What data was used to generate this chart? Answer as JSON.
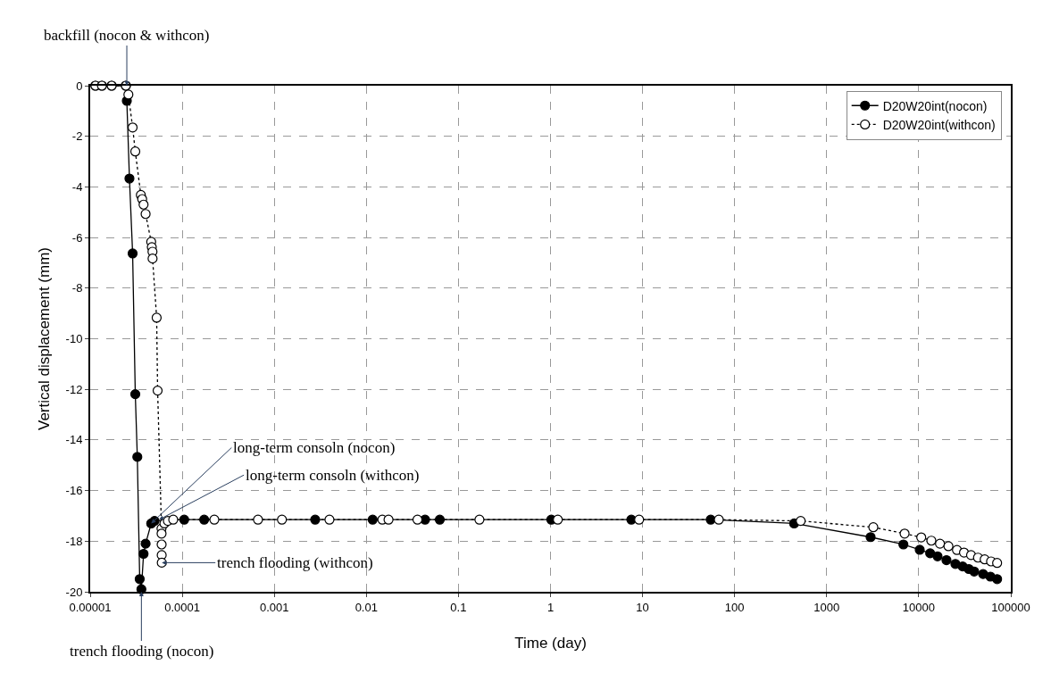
{
  "chart_data": {
    "type": "line",
    "xlabel": "Time (day)",
    "ylabel": "Vertical displacement (mm)",
    "log": "x",
    "xlim": [
      1e-05,
      100000
    ],
    "xticks": [
      {
        "value": 1e-05,
        "label": "0.00001"
      },
      {
        "value": 0.0001,
        "label": "0.0001"
      },
      {
        "value": 0.001,
        "label": "0.001"
      },
      {
        "value": 0.01,
        "label": "0.01"
      },
      {
        "value": 0.1,
        "label": "0.1"
      },
      {
        "value": 1,
        "label": "1"
      },
      {
        "value": 10,
        "label": "10"
      },
      {
        "value": 100,
        "label": "100"
      },
      {
        "value": 1000,
        "label": "1000"
      },
      {
        "value": 10000,
        "label": "10000"
      },
      {
        "value": 100000,
        "label": "100000"
      }
    ],
    "ylim": [
      -20,
      0
    ],
    "yticks": [
      0,
      -2,
      -4,
      -6,
      -8,
      -10,
      -12,
      -14,
      -16,
      -18,
      -20
    ],
    "grid": true,
    "legend": "top right",
    "marker": "circle",
    "series": [
      {
        "name": "D20W20int(nocon)",
        "color": "#000000",
        "line_style": "solid",
        "x": [
          1.14e-05,
          1.34e-05,
          1.71e-05,
          2.44e-05,
          2.5e-05,
          2.67e-05,
          2.89e-05,
          3.09e-05,
          3.25e-05,
          3.45e-05,
          3.6e-05,
          3.8e-05,
          4e-05,
          4.6e-05,
          5e-05,
          0.000105,
          0.000173,
          0.00278,
          0.0117,
          0.0434,
          0.0627,
          1.02,
          7.55,
          55,
          443,
          3000,
          6810,
          10250,
          13300,
          16000,
          20000,
          25000,
          30000,
          35000,
          40000,
          50000,
          60000,
          71000
        ],
        "values": [
          0,
          0,
          0,
          0,
          -0.6,
          -3.67,
          -6.63,
          -12.19,
          -14.67,
          -19.5,
          -19.9,
          -18.5,
          -18.1,
          -17.3,
          -17.2,
          -17.15,
          -17.15,
          -17.15,
          -17.15,
          -17.15,
          -17.15,
          -17.15,
          -17.15,
          -17.15,
          -17.3,
          -17.84,
          -18.13,
          -18.34,
          -18.48,
          -18.6,
          -18.75,
          -18.9,
          -19.0,
          -19.1,
          -19.2,
          -19.3,
          -19.4,
          -19.5
        ]
      },
      {
        "name": "D20W20int(withcon)",
        "color": "#000000",
        "line_style": "dotted",
        "x": [
          1.14e-05,
          1.34e-05,
          1.71e-05,
          2.44e-05,
          2.6e-05,
          2.89e-05,
          3.09e-05,
          3.55e-05,
          3.67e-05,
          3.8e-05,
          4e-05,
          4.6e-05,
          4.67e-05,
          4.75e-05,
          4.76e-05,
          5.27e-05,
          5.4e-05,
          5.95e-05,
          5.96e-05,
          5.97e-05,
          5.98e-05,
          5.99e-05,
          6.4e-05,
          6.98e-05,
          7.98e-05,
          0.000223,
          0.000665,
          0.00121,
          0.00397,
          0.0149,
          0.0174,
          0.0359,
          0.169,
          1.2,
          9.17,
          67.3,
          522,
          3210,
          7020,
          10640,
          13700,
          17000,
          21000,
          26000,
          31000,
          37000,
          44000,
          52000,
          61000,
          71000
        ],
        "values": [
          0,
          0,
          0,
          0,
          -0.35,
          -1.65,
          -2.6,
          -4.32,
          -4.48,
          -4.7,
          -5.07,
          -6.17,
          -6.38,
          -6.56,
          -6.83,
          -9.17,
          -12.05,
          -17.5,
          -17.7,
          -18.13,
          -18.55,
          -18.85,
          -17.3,
          -17.2,
          -17.15,
          -17.15,
          -17.15,
          -17.15,
          -17.15,
          -17.15,
          -17.15,
          -17.15,
          -17.15,
          -17.15,
          -17.15,
          -17.15,
          -17.2,
          -17.45,
          -17.7,
          -17.85,
          -17.98,
          -18.1,
          -18.2,
          -18.35,
          -18.45,
          -18.55,
          -18.65,
          -18.72,
          -18.8,
          -18.86
        ]
      }
    ],
    "annotations": [
      {
        "text": "backfill (nocon & withcon)",
        "x": 2.5e-05,
        "y": 0
      },
      {
        "text": "long-term consoln (nocon)",
        "x": 4.6e-05,
        "y": -17.3
      },
      {
        "text": "long-term consoln (withcon)",
        "x": 5.6e-05,
        "y": -17.15
      },
      {
        "text": "trench flooding (withcon)",
        "x": 6e-05,
        "y": -18.85
      },
      {
        "text": "trench flooding (nocon)",
        "x": 3.6e-05,
        "y": -20
      }
    ]
  }
}
